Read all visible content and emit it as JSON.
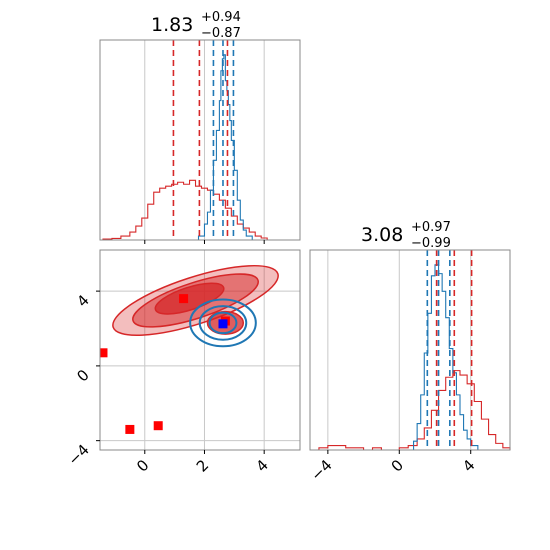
{
  "chart_data": [
    {
      "type": "histogram",
      "panel": "top-left",
      "title": {
        "median": "1.83",
        "plus": "+0.94",
        "minus": "−0.87"
      },
      "xlim": [
        -1.5,
        5.2
      ],
      "grid": true,
      "x_ticks": [
        0,
        2,
        4
      ],
      "series": [
        {
          "color": "#d62728",
          "hist_x": [
            -1.4,
            -1.1,
            -0.8,
            -0.5,
            -0.3,
            -0.1,
            0.1,
            0.3,
            0.5,
            0.7,
            0.9,
            1.1,
            1.3,
            1.5,
            1.7,
            1.9,
            2.1,
            2.3,
            2.5,
            2.7,
            2.9,
            3.1,
            3.3,
            3.5,
            3.7,
            3.9,
            4.1
          ],
          "hist_y": [
            0.005,
            0.008,
            0.02,
            0.04,
            0.07,
            0.11,
            0.18,
            0.24,
            0.26,
            0.27,
            0.28,
            0.29,
            0.28,
            0.3,
            0.27,
            0.26,
            0.25,
            0.23,
            0.2,
            0.16,
            0.12,
            0.08,
            0.06,
            0.04,
            0.02,
            0.01,
            0.0
          ]
        },
        {
          "color": "#1f77b4",
          "hist_x": [
            1.6,
            1.8,
            2.0,
            2.1,
            2.2,
            2.3,
            2.4,
            2.5,
            2.55,
            2.6,
            2.65,
            2.7,
            2.75,
            2.8,
            2.85,
            2.9,
            3.0,
            3.1,
            3.2,
            3.3,
            3.4,
            3.6
          ],
          "hist_y": [
            0.0,
            0.02,
            0.08,
            0.14,
            0.25,
            0.4,
            0.55,
            0.7,
            0.85,
            0.91,
            0.93,
            0.8,
            0.75,
            0.68,
            0.6,
            0.5,
            0.35,
            0.2,
            0.1,
            0.05,
            0.02,
            0.0
          ]
        }
      ],
      "vlines": [
        {
          "x": 0.96,
          "color": "#d62728"
        },
        {
          "x": 1.83,
          "color": "#d62728"
        },
        {
          "x": 2.77,
          "color": "#d62728"
        },
        {
          "x": 2.3,
          "color": "#1f77b4"
        },
        {
          "x": 2.62,
          "color": "#1f77b4"
        },
        {
          "x": 2.97,
          "color": "#1f77b4"
        }
      ]
    },
    {
      "type": "contour",
      "panel": "bottom-left",
      "xlim": [
        -1.5,
        5.2
      ],
      "ylim": [
        -4.5,
        6.2
      ],
      "grid": true,
      "x_ticks": [
        0,
        2,
        4
      ],
      "y_ticks": [
        -4,
        0,
        4
      ],
      "red_levels": [
        {
          "cx": 1.7,
          "cy": 3.5,
          "rx": 2.9,
          "ry": 1.25,
          "angle": -18,
          "opacity": 0.3
        },
        {
          "cx": 1.7,
          "cy": 3.5,
          "rx": 2.2,
          "ry": 0.95,
          "angle": -18,
          "opacity": 0.5
        },
        {
          "cx": 1.5,
          "cy": 3.6,
          "rx": 1.2,
          "ry": 0.6,
          "angle": -18,
          "opacity": 0.75
        },
        {
          "cx": 2.7,
          "cy": 2.3,
          "rx": 0.6,
          "ry": 0.6,
          "angle": 0,
          "opacity": 0.75
        }
      ],
      "blue_levels": [
        {
          "cx": 2.62,
          "cy": 2.3,
          "rx": 1.1,
          "ry": 1.25,
          "angle": 0
        },
        {
          "cx": 2.62,
          "cy": 2.3,
          "rx": 0.78,
          "ry": 0.9,
          "angle": 0
        },
        {
          "cx": 2.62,
          "cy": 2.3,
          "rx": 0.45,
          "ry": 0.55,
          "angle": 0
        }
      ],
      "red_points": [
        {
          "x": 1.3,
          "y": 3.6
        },
        {
          "x": 2.7,
          "y": 2.4
        },
        {
          "x": -1.4,
          "y": 0.7
        },
        {
          "x": -0.5,
          "y": -3.4
        },
        {
          "x": 0.45,
          "y": -3.2
        }
      ],
      "blue_points": [
        {
          "x": 2.62,
          "y": 2.25
        }
      ]
    },
    {
      "type": "histogram",
      "panel": "bottom-right",
      "title": {
        "median": "3.08",
        "plus": "+0.97",
        "minus": "−0.99"
      },
      "xlim": [
        -5,
        6.2
      ],
      "grid": true,
      "x_ticks": [
        -4,
        0,
        4
      ],
      "series": [
        {
          "color": "#d62728",
          "hist_x": [
            -5.0,
            -4.5,
            -4.0,
            -3.5,
            -3.0,
            -2.5,
            -2.0,
            -1.5,
            -1.0,
            -0.5,
            0.0,
            0.5,
            1.0,
            1.4,
            1.8,
            2.2,
            2.6,
            3.0,
            3.4,
            3.8,
            4.2,
            4.6,
            5.0,
            5.4,
            5.8
          ],
          "hist_y": [
            0.0,
            0.01,
            0.02,
            0.02,
            0.01,
            0.01,
            0.0,
            0.01,
            0.0,
            0.0,
            0.01,
            0.02,
            0.05,
            0.1,
            0.18,
            0.27,
            0.33,
            0.36,
            0.34,
            0.3,
            0.22,
            0.14,
            0.07,
            0.03,
            0.01
          ]
        },
        {
          "color": "#1f77b4",
          "hist_x": [
            0.4,
            0.8,
            1.0,
            1.2,
            1.4,
            1.6,
            1.8,
            2.0,
            2.2,
            2.4,
            2.6,
            2.8,
            3.0,
            3.2,
            3.4,
            3.6,
            3.8,
            4.0,
            4.4
          ],
          "hist_y": [
            0.0,
            0.04,
            0.12,
            0.25,
            0.44,
            0.62,
            0.79,
            0.84,
            0.8,
            0.72,
            0.6,
            0.46,
            0.35,
            0.25,
            0.16,
            0.09,
            0.05,
            0.02,
            0.0
          ]
        }
      ],
      "vlines": [
        {
          "x": 2.09,
          "color": "#d62728"
        },
        {
          "x": 3.08,
          "color": "#d62728"
        },
        {
          "x": 4.05,
          "color": "#d62728"
        },
        {
          "x": 1.57,
          "color": "#1f77b4"
        },
        {
          "x": 2.2,
          "color": "#1f77b4"
        },
        {
          "x": 2.83,
          "color": "#1f77b4"
        }
      ]
    }
  ]
}
